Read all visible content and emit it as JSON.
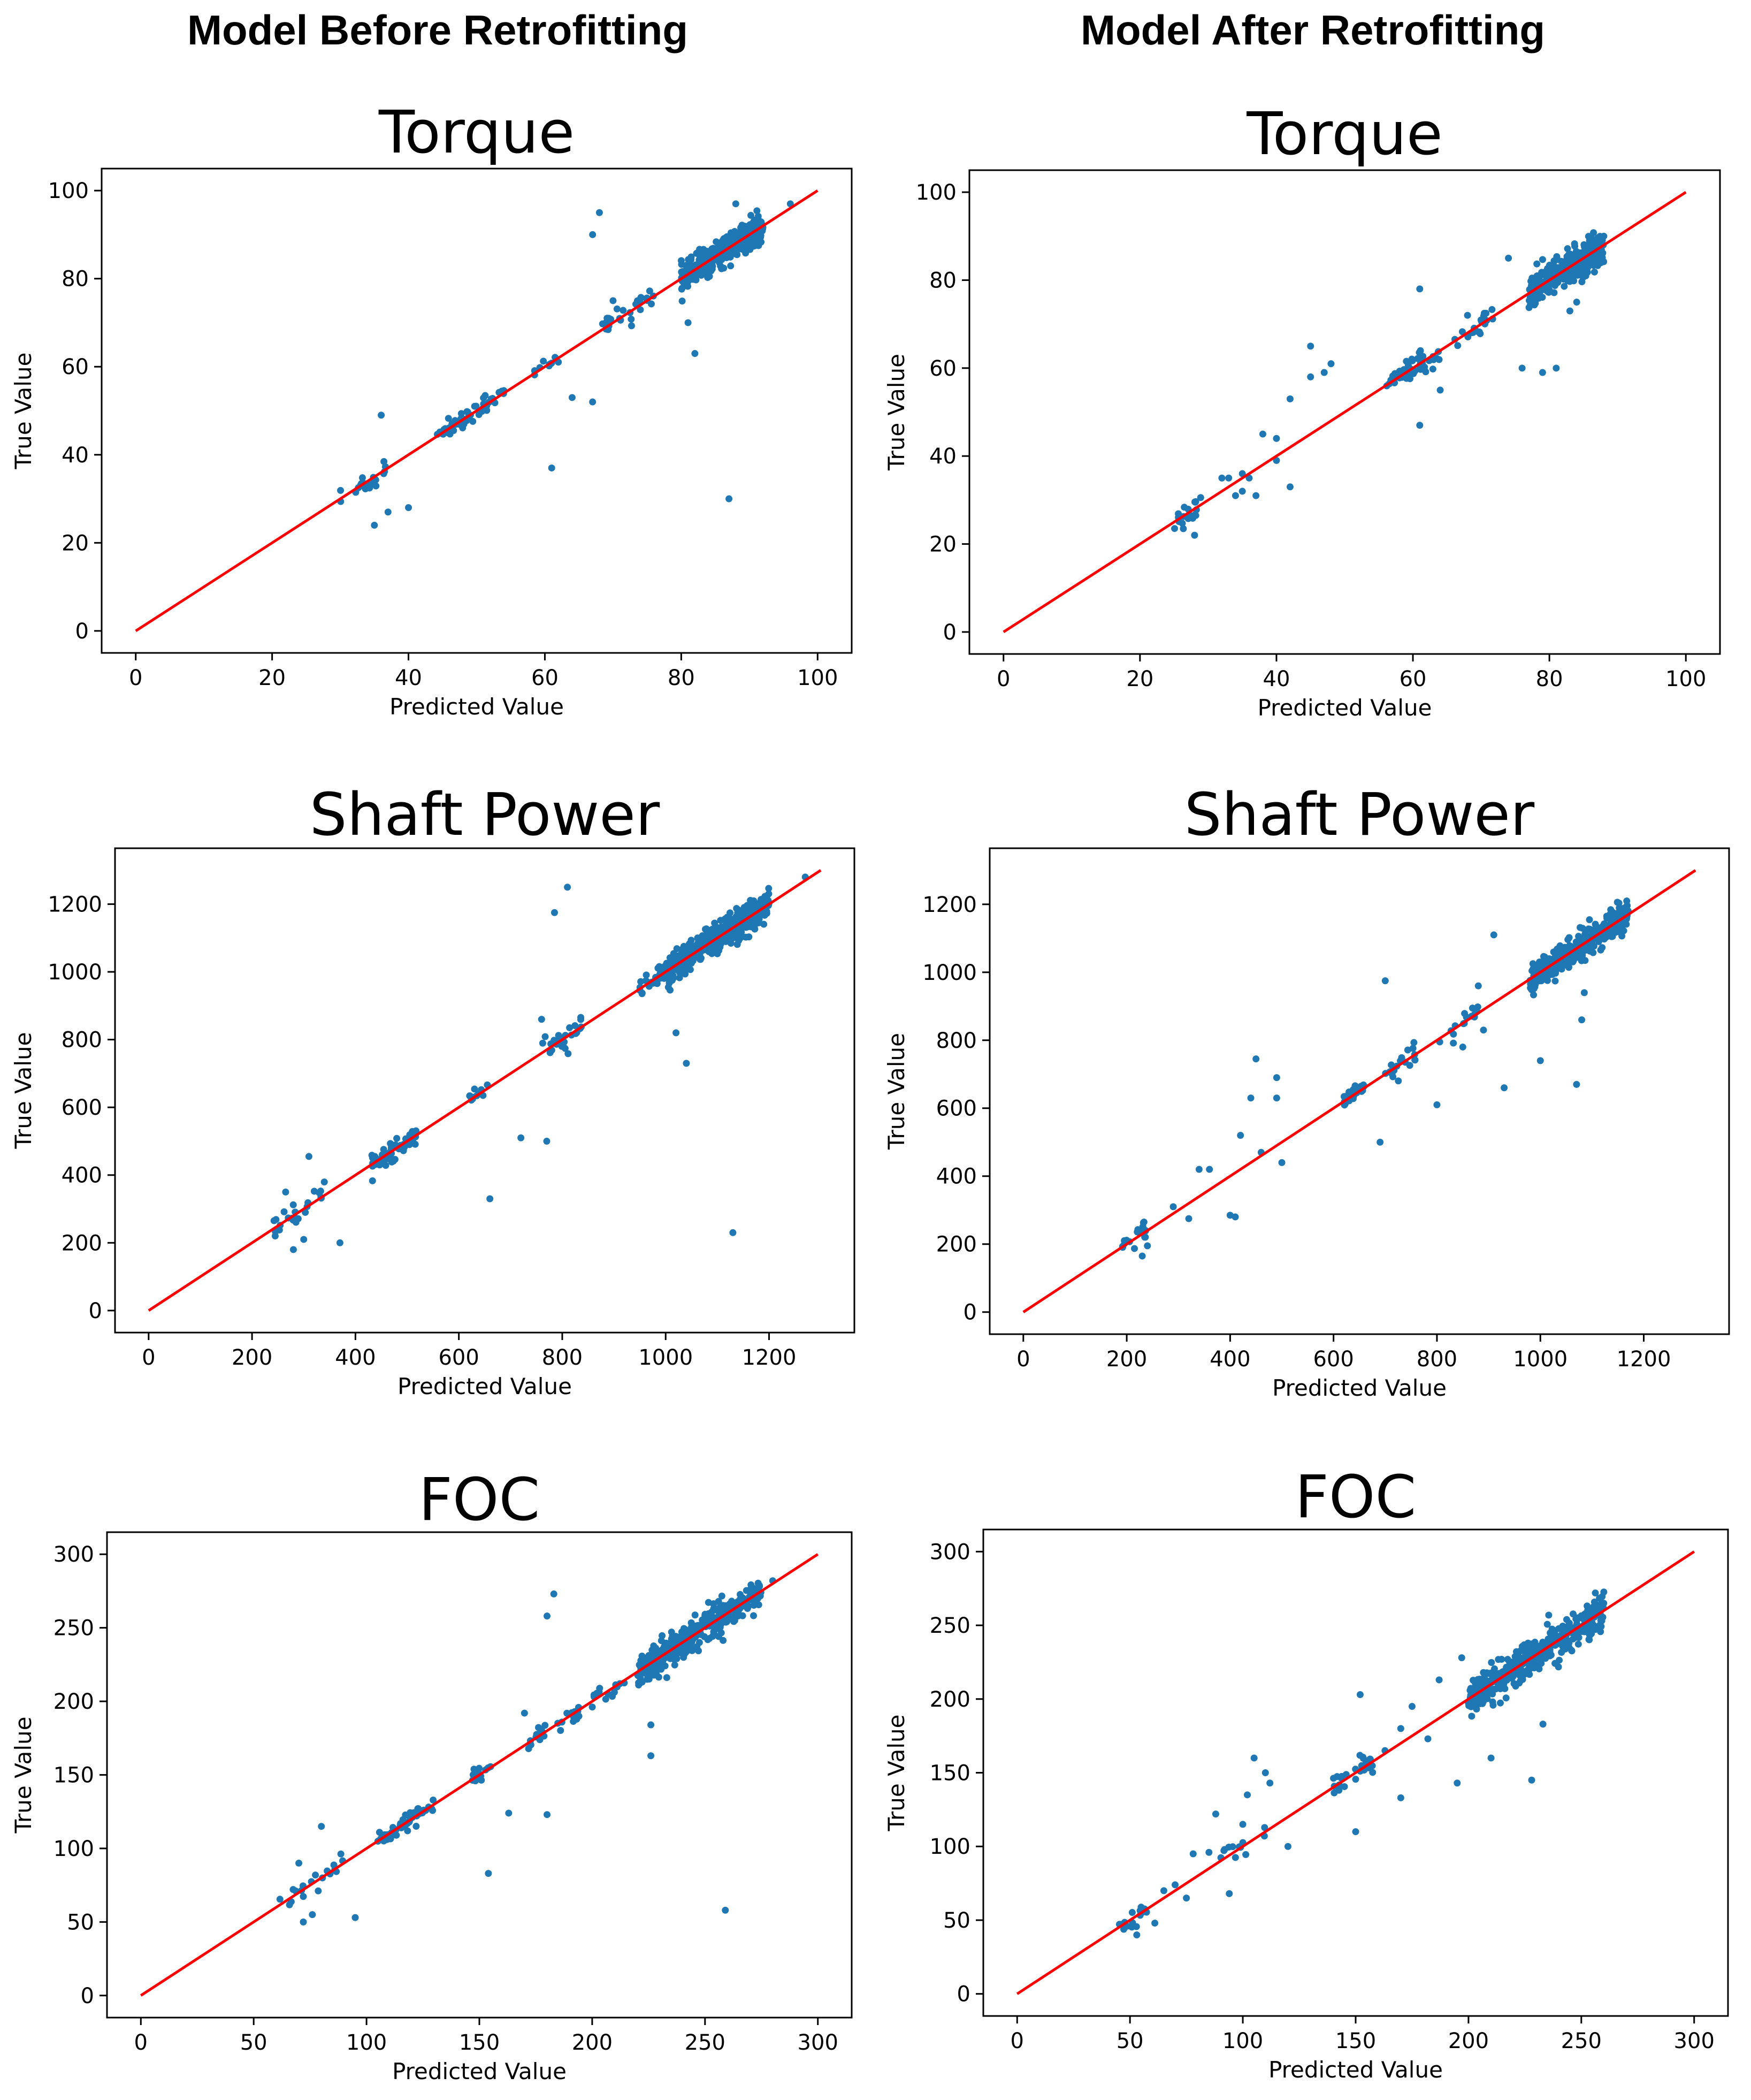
{
  "headings": {
    "left": "Model Before Retrofitting",
    "right": "Model After Retrofitting"
  },
  "colors": {
    "points": "#1f77b4",
    "line": "#ff0000"
  },
  "chart_data": [
    {
      "id": "torque-before",
      "type": "scatter",
      "title": "Torque",
      "xlabel": "Predicted Value",
      "ylabel": "True Value",
      "xlim": [
        -5,
        105
      ],
      "ylim": [
        -5,
        105
      ],
      "xticks": [
        0,
        20,
        40,
        60,
        80,
        100
      ],
      "yticks": [
        0,
        20,
        40,
        60,
        80,
        100
      ],
      "reference_line": [
        [
          0,
          0
        ],
        [
          100,
          100
        ]
      ],
      "clusters": [
        {
          "x0": 80,
          "x1": 92,
          "spread": 1.5,
          "n": 420
        },
        {
          "x0": 44,
          "x1": 54,
          "spread": 1.0,
          "n": 60
        },
        {
          "x0": 30,
          "x1": 38,
          "spread": 1.5,
          "n": 20
        },
        {
          "x0": 68,
          "x1": 76,
          "spread": 1.2,
          "n": 30
        },
        {
          "x0": 58,
          "x1": 62,
          "spread": 1.0,
          "n": 10
        }
      ],
      "outliers": [
        [
          68,
          95
        ],
        [
          67,
          90
        ],
        [
          87,
          30
        ],
        [
          61,
          37
        ],
        [
          64,
          53
        ],
        [
          67,
          52
        ],
        [
          82,
          63
        ],
        [
          81,
          70
        ],
        [
          36,
          49
        ],
        [
          35,
          24
        ],
        [
          40,
          28
        ],
        [
          37,
          27
        ],
        [
          70,
          75
        ],
        [
          88,
          97
        ],
        [
          96,
          97
        ]
      ]
    },
    {
      "id": "torque-after",
      "type": "scatter",
      "title": "Torque",
      "xlabel": "Predicted Value",
      "ylabel": "True Value",
      "xlim": [
        -5,
        105
      ],
      "ylim": [
        -5,
        105
      ],
      "xticks": [
        0,
        20,
        40,
        60,
        80,
        100
      ],
      "yticks": [
        0,
        20,
        40,
        60,
        80,
        100
      ],
      "reference_line": [
        [
          0,
          0
        ],
        [
          100,
          100
        ]
      ],
      "clusters": [
        {
          "x0": 77,
          "x1": 88,
          "spread": 1.8,
          "n": 380
        },
        {
          "x0": 56,
          "x1": 64,
          "spread": 1.2,
          "n": 50
        },
        {
          "x0": 25,
          "x1": 29,
          "spread": 1.5,
          "n": 20
        },
        {
          "x0": 66,
          "x1": 72,
          "spread": 1.5,
          "n": 20
        }
      ],
      "outliers": [
        [
          45,
          65
        ],
        [
          42,
          53
        ],
        [
          48,
          61
        ],
        [
          47,
          59
        ],
        [
          45,
          58
        ],
        [
          61,
          78
        ],
        [
          64,
          55
        ],
        [
          61,
          47
        ],
        [
          74,
          85
        ],
        [
          81,
          60
        ],
        [
          79,
          59
        ],
        [
          83,
          73
        ],
        [
          84,
          75
        ],
        [
          76,
          60
        ],
        [
          38,
          45
        ],
        [
          40,
          44
        ],
        [
          42,
          33
        ],
        [
          40,
          39
        ],
        [
          35,
          36
        ],
        [
          33,
          35
        ],
        [
          36,
          35
        ],
        [
          32,
          35
        ],
        [
          37,
          31
        ],
        [
          28,
          22
        ],
        [
          34,
          31
        ],
        [
          35,
          32
        ],
        [
          68,
          72
        ]
      ]
    },
    {
      "id": "shaft-power-before",
      "type": "scatter",
      "title": "Shaft Power",
      "xlabel": "Predicted Value",
      "ylabel": "True Value",
      "xlim": [
        -65,
        1365
      ],
      "ylim": [
        -65,
        1365
      ],
      "xticks": [
        0,
        200,
        400,
        600,
        800,
        1000,
        1200
      ],
      "yticks": [
        0,
        200,
        400,
        600,
        800,
        1000,
        1200
      ],
      "reference_line": [
        [
          0,
          0
        ],
        [
          1300,
          1300
        ]
      ],
      "clusters": [
        {
          "x0": 1000,
          "x1": 1200,
          "spread": 22,
          "n": 430
        },
        {
          "x0": 430,
          "x1": 520,
          "spread": 15,
          "n": 60
        },
        {
          "x0": 760,
          "x1": 840,
          "spread": 18,
          "n": 25
        },
        {
          "x0": 950,
          "x1": 1000,
          "spread": 15,
          "n": 30
        },
        {
          "x0": 240,
          "x1": 340,
          "spread": 20,
          "n": 25
        },
        {
          "x0": 620,
          "x1": 660,
          "spread": 12,
          "n": 10
        }
      ],
      "outliers": [
        [
          810,
          1250
        ],
        [
          785,
          1175
        ],
        [
          1130,
          230
        ],
        [
          660,
          330
        ],
        [
          1040,
          730
        ],
        [
          1020,
          820
        ],
        [
          720,
          510
        ],
        [
          770,
          500
        ],
        [
          370,
          200
        ],
        [
          310,
          455
        ],
        [
          265,
          350
        ],
        [
          280,
          180
        ],
        [
          300,
          210
        ],
        [
          760,
          860
        ],
        [
          1270,
          1280
        ]
      ]
    },
    {
      "id": "shaft-power-after",
      "type": "scatter",
      "title": "Shaft Power",
      "xlabel": "Predicted Value",
      "ylabel": "True Value",
      "xlim": [
        -65,
        1365
      ],
      "ylim": [
        -65,
        1365
      ],
      "xticks": [
        0,
        200,
        400,
        600,
        800,
        1000,
        1200
      ],
      "yticks": [
        0,
        200,
        400,
        600,
        800,
        1000,
        1200
      ],
      "reference_line": [
        [
          0,
          0
        ],
        [
          1300,
          1300
        ]
      ],
      "clusters": [
        {
          "x0": 980,
          "x1": 1170,
          "spread": 22,
          "n": 380
        },
        {
          "x0": 620,
          "x1": 660,
          "spread": 10,
          "n": 30
        },
        {
          "x0": 700,
          "x1": 760,
          "spread": 15,
          "n": 20
        },
        {
          "x0": 180,
          "x1": 240,
          "spread": 15,
          "n": 20
        },
        {
          "x0": 800,
          "x1": 880,
          "spread": 20,
          "n": 15
        }
      ],
      "outliers": [
        [
          700,
          975
        ],
        [
          910,
          1110
        ],
        [
          880,
          960
        ],
        [
          1080,
          860
        ],
        [
          1085,
          940
        ],
        [
          1070,
          670
        ],
        [
          1000,
          740
        ],
        [
          930,
          660
        ],
        [
          800,
          610
        ],
        [
          690,
          500
        ],
        [
          450,
          745
        ],
        [
          440,
          630
        ],
        [
          490,
          690
        ],
        [
          490,
          630
        ],
        [
          410,
          280
        ],
        [
          400,
          285
        ],
        [
          340,
          420
        ],
        [
          360,
          420
        ],
        [
          320,
          275
        ],
        [
          290,
          310
        ],
        [
          240,
          195
        ],
        [
          230,
          165
        ],
        [
          460,
          470
        ],
        [
          500,
          440
        ],
        [
          420,
          520
        ],
        [
          850,
          780
        ],
        [
          890,
          830
        ]
      ]
    },
    {
      "id": "foc-before",
      "type": "scatter",
      "title": "FOC",
      "xlabel": "Predicted Value",
      "ylabel": "True Value",
      "xlim": [
        -15,
        315
      ],
      "ylim": [
        -15,
        315
      ],
      "xticks": [
        0,
        50,
        100,
        150,
        200,
        250,
        300
      ],
      "yticks": [
        0,
        50,
        100,
        150,
        200,
        250,
        300
      ],
      "reference_line": [
        [
          0,
          0
        ],
        [
          300,
          300
        ]
      ],
      "clusters": [
        {
          "x0": 220,
          "x1": 275,
          "spread": 5,
          "n": 430
        },
        {
          "x0": 105,
          "x1": 130,
          "spread": 3,
          "n": 50
        },
        {
          "x0": 170,
          "x1": 195,
          "spread": 4,
          "n": 25
        },
        {
          "x0": 60,
          "x1": 90,
          "spread": 5,
          "n": 20
        },
        {
          "x0": 145,
          "x1": 155,
          "spread": 3,
          "n": 12
        },
        {
          "x0": 200,
          "x1": 215,
          "spread": 3,
          "n": 15
        }
      ],
      "outliers": [
        [
          183,
          273
        ],
        [
          180,
          258
        ],
        [
          259,
          58
        ],
        [
          154,
          83
        ],
        [
          226,
          163
        ],
        [
          226,
          184
        ],
        [
          163,
          124
        ],
        [
          180,
          123
        ],
        [
          95,
          53
        ],
        [
          80,
          115
        ],
        [
          70,
          90
        ],
        [
          72,
          50
        ],
        [
          76,
          55
        ],
        [
          170,
          192
        ],
        [
          280,
          282
        ],
        [
          255,
          262
        ]
      ]
    },
    {
      "id": "foc-after",
      "type": "scatter",
      "title": "FOC",
      "xlabel": "Predicted Value",
      "ylabel": "True Value",
      "xlim": [
        -15,
        315
      ],
      "ylim": [
        -15,
        315
      ],
      "xticks": [
        0,
        50,
        100,
        150,
        200,
        250,
        300
      ],
      "yticks": [
        0,
        50,
        100,
        150,
        200,
        250,
        300
      ],
      "reference_line": [
        [
          0,
          0
        ],
        [
          300,
          300
        ]
      ],
      "clusters": [
        {
          "x0": 200,
          "x1": 260,
          "spread": 6,
          "n": 420
        },
        {
          "x0": 140,
          "x1": 160,
          "spread": 4,
          "n": 25
        },
        {
          "x0": 45,
          "x1": 58,
          "spread": 3,
          "n": 15
        },
        {
          "x0": 90,
          "x1": 110,
          "spread": 4,
          "n": 12
        }
      ],
      "outliers": [
        [
          152,
          203
        ],
        [
          187,
          213
        ],
        [
          197,
          228
        ],
        [
          105,
          160
        ],
        [
          110,
          150
        ],
        [
          112,
          143
        ],
        [
          102,
          135
        ],
        [
          88,
          122
        ],
        [
          100,
          115
        ],
        [
          94,
          68
        ],
        [
          120,
          100
        ],
        [
          150,
          110
        ],
        [
          170,
          133
        ],
        [
          195,
          143
        ],
        [
          210,
          160
        ],
        [
          228,
          145
        ],
        [
          233,
          183
        ],
        [
          170,
          180
        ],
        [
          163,
          165
        ],
        [
          182,
          173
        ],
        [
          65,
          70
        ],
        [
          70,
          74
        ],
        [
          78,
          95
        ],
        [
          61,
          48
        ],
        [
          53,
          40
        ],
        [
          75,
          65
        ],
        [
          85,
          96
        ],
        [
          175,
          195
        ]
      ]
    }
  ]
}
